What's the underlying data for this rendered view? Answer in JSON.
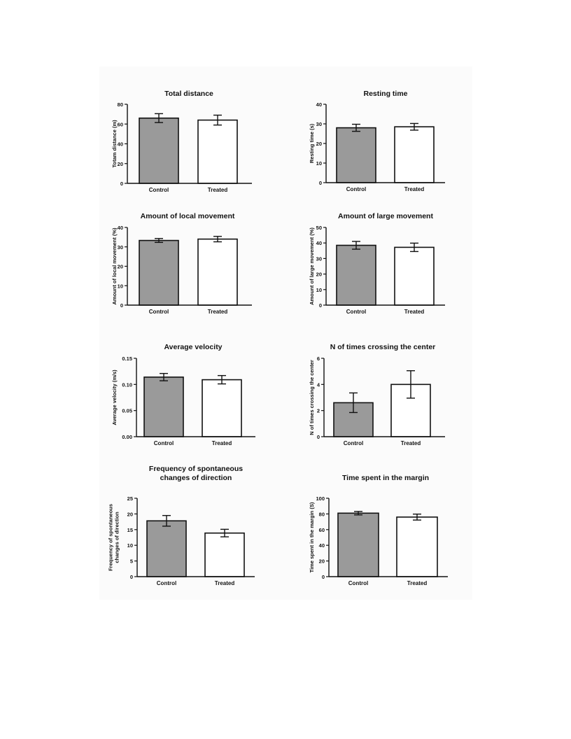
{
  "figure": {
    "colors": {
      "control_fill": "#9a9a9a",
      "treated_fill": "#ffffff",
      "stroke": "#111111",
      "panel": "#fbfbfb"
    }
  },
  "chart_data": [
    {
      "type": "bar",
      "title": "Total distance",
      "title_lines": [
        "Total distance"
      ],
      "ylabel": "Totam distance (m)",
      "ylabel_lines": [
        "Totam distance (m)"
      ],
      "categories": [
        "Control",
        "Treated"
      ],
      "values": [
        66,
        64
      ],
      "errors": [
        4.5,
        5
      ],
      "ylim": [
        0,
        80
      ],
      "yticks": [
        0,
        20,
        40,
        60,
        80
      ],
      "ytick_labels": [
        "0",
        "20",
        "40",
        "60",
        "80"
      ],
      "grid": false
    },
    {
      "type": "bar",
      "title": "Resting time",
      "title_lines": [
        "Resting time"
      ],
      "ylabel": "Resting time (s)",
      "ylabel_lines": [
        "Resting time (s)"
      ],
      "categories": [
        "Control",
        "Treated"
      ],
      "values": [
        28,
        28.5
      ],
      "errors": [
        1.8,
        1.7
      ],
      "ylim": [
        0,
        40
      ],
      "yticks": [
        0,
        10,
        20,
        30,
        40
      ],
      "ytick_labels": [
        "0",
        "10",
        "20",
        "30",
        "40"
      ],
      "grid": false
    },
    {
      "type": "bar",
      "title": "Amount of local movement",
      "title_lines": [
        "Amount of local movement"
      ],
      "ylabel": "Amount of local movement (%)",
      "ylabel_lines": [
        "Amount of local movement (%)"
      ],
      "categories": [
        "Control",
        "Treated"
      ],
      "values": [
        33.3,
        34
      ],
      "errors": [
        1,
        1.4
      ],
      "ylim": [
        0,
        40
      ],
      "yticks": [
        0,
        10,
        20,
        30,
        40
      ],
      "ytick_labels": [
        "0",
        "10",
        "20",
        "30",
        "40"
      ],
      "grid": false
    },
    {
      "type": "bar",
      "title": "Amount of large movement",
      "title_lines": [
        "Amount of large movement"
      ],
      "ylabel": "Amount of large movement (%)",
      "ylabel_lines": [
        "Amount of large movement (%)"
      ],
      "categories": [
        "Control",
        "Treated"
      ],
      "values": [
        38.5,
        37.2
      ],
      "errors": [
        2.5,
        2.7
      ],
      "ylim": [
        0,
        50
      ],
      "yticks": [
        0,
        10,
        20,
        30,
        40,
        50
      ],
      "ytick_labels": [
        "0",
        "10",
        "20",
        "30",
        "40",
        "50"
      ],
      "grid": false
    },
    {
      "type": "bar",
      "title": "Average velocity",
      "title_lines": [
        "Average velocity"
      ],
      "ylabel": "Average velocity (m/s)",
      "ylabel_lines": [
        "Average velocity (m/s)"
      ],
      "categories": [
        "Control",
        "Treated"
      ],
      "values": [
        0.114,
        0.109
      ],
      "errors": [
        0.007,
        0.008
      ],
      "ylim": [
        0,
        0.15
      ],
      "yticks": [
        0,
        0.05,
        0.1,
        0.15
      ],
      "ytick_labels": [
        "0.00",
        "0.05",
        "0.10",
        "0.15"
      ],
      "grid": false
    },
    {
      "type": "bar",
      "title": "N of times crossing the center",
      "title_lines": [
        "N of times crossing the center"
      ],
      "ylabel": "N of times crossing the center",
      "ylabel_lines": [
        "N of times crossing the center"
      ],
      "categories": [
        "Control",
        "Treated"
      ],
      "values": [
        2.6,
        4
      ],
      "errors": [
        0.75,
        1.05
      ],
      "ylim": [
        0,
        6
      ],
      "yticks": [
        0,
        2,
        4,
        6
      ],
      "ytick_labels": [
        "0",
        "2",
        "4",
        "6"
      ],
      "grid": false
    },
    {
      "type": "bar",
      "title": "Frequency of spontaneous changes of direction",
      "title_lines": [
        "Frequency of spontaneous",
        "changes of direction"
      ],
      "ylabel": "Frequency of spontaneous changes of direction",
      "ylabel_lines": [
        "Frequency of spontaneous",
        "changes of direction"
      ],
      "categories": [
        "Control",
        "Treated"
      ],
      "values": [
        17.8,
        13.9
      ],
      "errors": [
        1.7,
        1.2
      ],
      "ylim": [
        0,
        25
      ],
      "yticks": [
        0,
        5,
        10,
        15,
        20,
        25
      ],
      "ytick_labels": [
        "0",
        "5",
        "10",
        "15",
        "20",
        "25"
      ],
      "grid": false
    },
    {
      "type": "bar",
      "title": "Time spent in the margin",
      "title_lines": [
        "Time spent in the margin"
      ],
      "ylabel": "Time spent in the margin (S)",
      "ylabel_lines": [
        "Time spent in the margin (S)"
      ],
      "categories": [
        "Control",
        "Treated"
      ],
      "values": [
        81,
        76
      ],
      "errors": [
        2.2,
        3.8
      ],
      "ylim": [
        0,
        100
      ],
      "yticks": [
        0,
        20,
        40,
        60,
        80,
        100
      ],
      "ytick_labels": [
        "0",
        "20",
        "40",
        "60",
        "80",
        "100"
      ],
      "grid": false
    }
  ]
}
